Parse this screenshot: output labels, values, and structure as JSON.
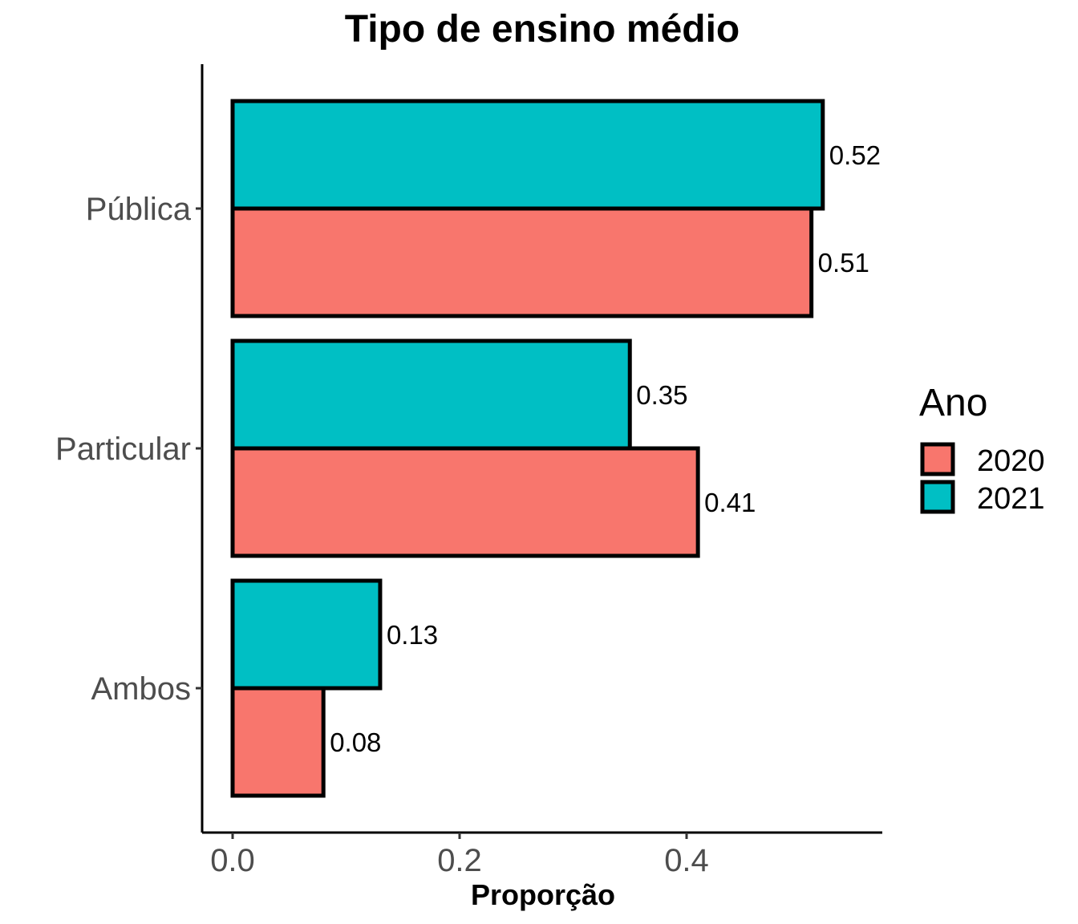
{
  "chart_data": {
    "type": "bar",
    "orientation": "horizontal",
    "title": "Tipo de ensino médio",
    "xlabel": "Proporção",
    "ylabel": "",
    "categories": [
      "Pública",
      "Particular",
      "Ambos"
    ],
    "series": [
      {
        "name": "2020",
        "values": [
          0.51,
          0.41,
          0.08
        ],
        "labels": [
          "0.51",
          "0.41",
          "0.08"
        ],
        "color": "#F8766D"
      },
      {
        "name": "2021",
        "values": [
          0.52,
          0.35,
          0.13
        ],
        "labels": [
          "0.52",
          "0.35",
          "0.13"
        ],
        "color": "#00BFC4"
      }
    ],
    "xlim": [
      0,
      0.6
    ],
    "xticks": [
      0,
      0.2,
      0.4
    ],
    "xtick_labels": [
      "0.0",
      "0.2",
      "0.4"
    ],
    "grid": false,
    "legend": {
      "title": "Ano",
      "placement": "right",
      "entries": [
        "2020",
        "2021"
      ]
    }
  }
}
